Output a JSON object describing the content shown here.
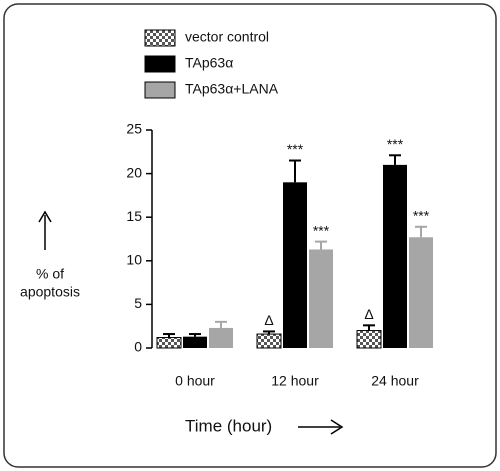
{
  "chart_data": {
    "type": "bar",
    "y_label": [
      "% of",
      "apoptosis"
    ],
    "x_label": "Time (hour)",
    "categories": [
      "0 hour",
      "12 hour",
      "24 hour"
    ],
    "ylim": [
      0,
      25
    ],
    "yticks": [
      0,
      5,
      10,
      15,
      20,
      25
    ],
    "series": [
      {
        "name": "vector control",
        "color": "#ffffff",
        "pattern": "checker",
        "values": [
          1.2,
          1.6,
          2.0
        ],
        "errors": [
          0.4,
          0.3,
          0.6
        ],
        "annotations": [
          null,
          "Δ",
          "Δ"
        ]
      },
      {
        "name": "TAp63α",
        "color": "#000000",
        "values": [
          1.3,
          19.0,
          21.0
        ],
        "errors": [
          0.3,
          2.5,
          1.1
        ],
        "annotations": [
          null,
          "***",
          "***"
        ]
      },
      {
        "name": "TAp63α+LANA",
        "color": "#a6a6a6",
        "values": [
          2.3,
          11.3,
          12.7
        ],
        "errors": [
          0.7,
          0.9,
          1.2
        ],
        "annotations": [
          null,
          "***",
          "***"
        ]
      }
    ]
  }
}
